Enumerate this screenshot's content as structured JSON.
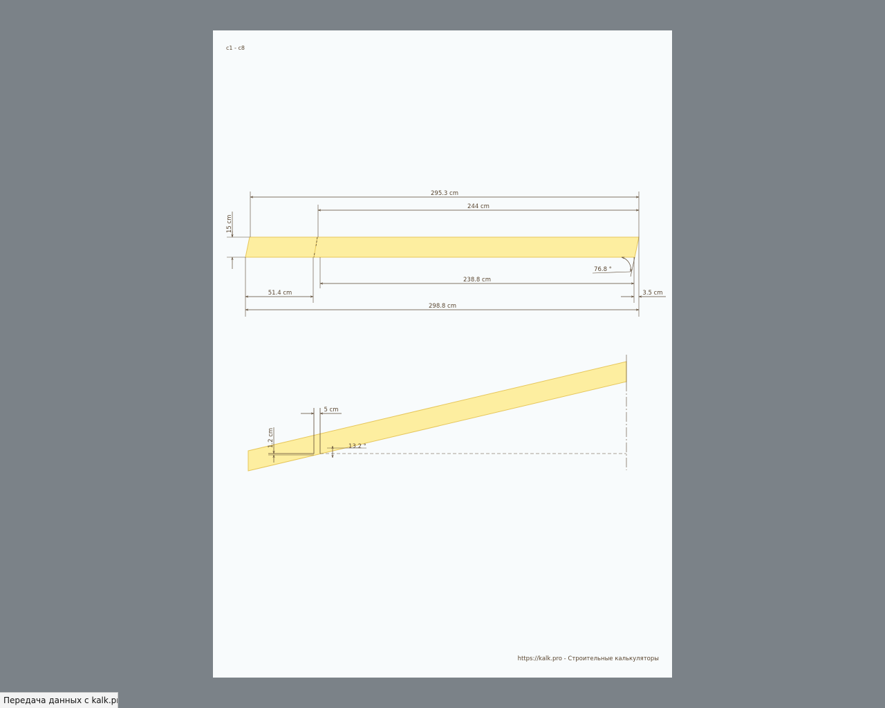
{
  "page": {
    "label": "c1 - c8",
    "footer": "https://kalk.pro - Строительные калькуляторы"
  },
  "drawing": {
    "top_view": {
      "dim_total_top": "295.3 cm",
      "dim_inner_top": "244 cm",
      "dim_height": "15 cm",
      "dim_angle": "76.8 °",
      "dim_inner_bottom": "238.8 cm",
      "dim_left_piece": "51.4 cm",
      "dim_end_offset": "3.5 cm",
      "dim_total_bottom": "298.8 cm"
    },
    "side_view": {
      "dim_notch_width": "5 cm",
      "dim_notch_depth": "1.2 cm",
      "dim_slope": "13.2 °"
    },
    "colors": {
      "board_fill": "#fdeea0",
      "board_stroke": "#e6c65a",
      "dim_line": "#5a4630"
    }
  },
  "status": {
    "text": "Передача данных с kalk.pro..."
  }
}
